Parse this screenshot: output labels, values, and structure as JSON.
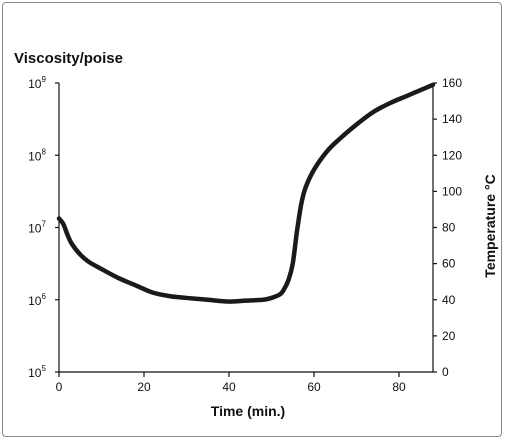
{
  "chart_data": {
    "type": "line",
    "title": "Viscosity/poise",
    "xlabel": "Time (min.)",
    "ylabel": "",
    "y2label": "Temperature °C",
    "xlim": [
      0,
      88
    ],
    "ylim_log10": [
      5,
      9
    ],
    "y2lim": [
      0,
      160
    ],
    "grid": false,
    "x_ticks": [
      "0",
      "20",
      "40",
      "60",
      "80"
    ],
    "y_ticks": [
      {
        "base": "10",
        "exp": "5"
      },
      {
        "base": "10",
        "exp": "6"
      },
      {
        "base": "10",
        "exp": "7"
      },
      {
        "base": "10",
        "exp": "8"
      },
      {
        "base": "10",
        "exp": "9"
      }
    ],
    "y2_ticks": [
      "0",
      "20",
      "40",
      "60",
      "80",
      "100",
      "120",
      "140",
      "160"
    ],
    "series": [
      {
        "values_unit": "temperature °C (right axis)",
        "x": [
          0,
          1,
          2,
          3,
          5,
          7,
          10,
          14,
          18,
          22,
          26,
          30,
          35,
          40,
          44,
          48,
          50,
          52,
          53,
          54,
          55,
          56,
          57,
          58,
          60,
          63,
          66,
          70,
          74,
          78,
          82,
          86,
          88
        ],
        "values": [
          85,
          82,
          76,
          71,
          65,
          61,
          57,
          52,
          48,
          44,
          42,
          41,
          40,
          39,
          39.5,
          40,
          41,
          43,
          46,
          51,
          60,
          78,
          93,
          102,
          112,
          122,
          129,
          137,
          144,
          149,
          153,
          157,
          159
        ]
      }
    ]
  }
}
